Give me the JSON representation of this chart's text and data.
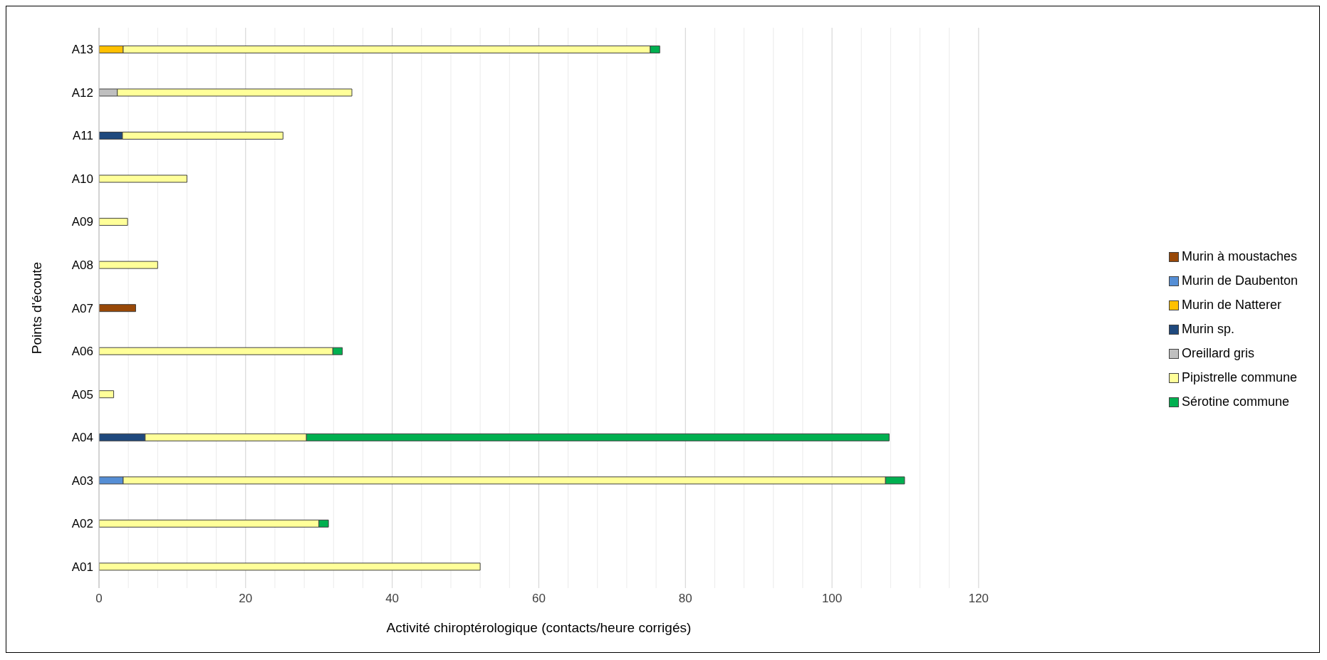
{
  "chart_data": {
    "type": "bar",
    "orientation": "horizontal",
    "stacked": true,
    "xlabel": "Activité chiroptérologique (contacts/heure corrigés)",
    "ylabel": "Points d'écoute",
    "categories": [
      "A13",
      "A12",
      "A11",
      "A10",
      "A09",
      "A08",
      "A07",
      "A06",
      "A05",
      "A04",
      "A03",
      "A02",
      "A01"
    ],
    "series": [
      {
        "name": "Murin à moustaches",
        "color": "#984807",
        "values": [
          0,
          0,
          0,
          0,
          0,
          0,
          5.0,
          0,
          0,
          0,
          0,
          0,
          0
        ]
      },
      {
        "name": "Murin de Daubenton",
        "color": "#558ed5",
        "values": [
          0,
          0,
          0,
          0,
          0,
          0,
          0,
          0,
          0,
          0,
          3.3,
          0,
          0
        ]
      },
      {
        "name": "Murin de Natterer",
        "color": "#ffc000",
        "values": [
          3.3,
          0,
          0,
          0,
          0,
          0,
          0,
          0,
          0,
          0,
          0,
          0,
          0
        ]
      },
      {
        "name": "Murin sp.",
        "color": "#1f497d",
        "values": [
          0,
          0,
          3.2,
          0,
          0,
          0,
          0,
          0,
          0,
          6.3,
          0,
          0,
          0
        ]
      },
      {
        "name": "Oreillard gris",
        "color": "#bfbfbf",
        "values": [
          0,
          2.5,
          0,
          0,
          0,
          0,
          0,
          0,
          0,
          0,
          0,
          0,
          0
        ]
      },
      {
        "name": "Pipistrelle commune",
        "color": "#ffff99",
        "values": [
          71.9,
          32.0,
          21.9,
          12.0,
          3.9,
          8.0,
          0,
          31.9,
          2.0,
          22.0,
          104.0,
          30.0,
          52.0
        ]
      },
      {
        "name": "Sérotine commune",
        "color": "#00b050",
        "values": [
          1.3,
          0,
          0,
          0,
          0,
          0,
          0,
          1.3,
          0,
          79.5,
          2.6,
          1.3,
          0
        ]
      }
    ],
    "xlim": [
      0,
      120
    ],
    "xticks": [
      0,
      {
        "value": 4,
        "label": null
      },
      {
        "value": 8,
        "label": null
      },
      {
        "value": 12,
        "label": null
      },
      {
        "value": 16,
        "label": null
      },
      20,
      {
        "value": 24,
        "label": null
      },
      {
        "value": 28,
        "label": null
      },
      {
        "value": 32,
        "label": null
      },
      {
        "value": 36,
        "label": null
      },
      40,
      {
        "value": 44,
        "label": null
      },
      {
        "value": 48,
        "label": null
      },
      {
        "value": 52,
        "label": null
      },
      {
        "value": 56,
        "label": null
      },
      60,
      {
        "value": 64,
        "label": null
      },
      {
        "value": 68,
        "label": null
      },
      {
        "value": 72,
        "label": null
      },
      {
        "value": 76,
        "label": null
      },
      80,
      {
        "value": 84,
        "label": null
      },
      {
        "value": 88,
        "label": null
      },
      {
        "value": 92,
        "label": null
      },
      {
        "value": 96,
        "label": null
      },
      100,
      {
        "value": 104,
        "label": null
      },
      {
        "value": 108,
        "label": null
      },
      {
        "value": 112,
        "label": null
      },
      {
        "value": 116,
        "label": null
      },
      120
    ],
    "grid": "x",
    "legend": "right"
  }
}
